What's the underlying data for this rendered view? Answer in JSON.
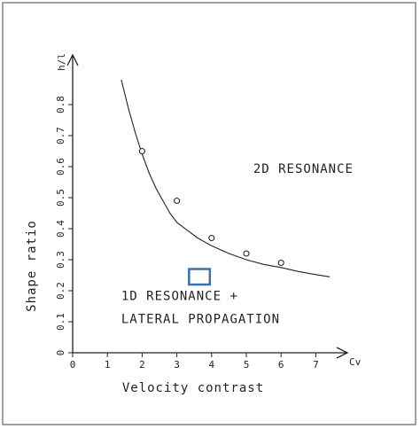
{
  "chart_data": {
    "type": "scatter",
    "xlabel": "Velocity contrast",
    "ylabel": "Shape ratio",
    "x_axis_unit": "Cv",
    "y_axis_unit": "h/l",
    "xlim": [
      0,
      8
    ],
    "ylim": [
      0,
      0.9
    ],
    "x_ticks": [
      0,
      1,
      2,
      3,
      4,
      5,
      6,
      7
    ],
    "y_ticks": [
      0,
      0.1,
      0.2,
      0.3,
      0.4,
      0.5,
      0.6,
      0.7,
      0.8
    ],
    "grid": false,
    "series": [
      {
        "style": "points",
        "marker": "open-circle",
        "x": [
          2,
          3,
          4,
          5,
          6
        ],
        "y": [
          0.65,
          0.49,
          0.37,
          0.32,
          0.29
        ]
      },
      {
        "style": "line",
        "x": [
          1.4,
          1.6,
          1.8,
          2.0,
          2.2,
          2.4,
          2.6,
          2.8,
          3.0,
          3.3,
          3.6,
          4.0,
          4.5,
          5.0,
          5.5,
          6.0,
          6.5,
          7.0,
          7.4
        ],
        "y": [
          0.88,
          0.79,
          0.71,
          0.64,
          0.58,
          0.53,
          0.49,
          0.45,
          0.42,
          0.395,
          0.37,
          0.345,
          0.32,
          0.3,
          0.285,
          0.275,
          0.262,
          0.252,
          0.245
        ]
      }
    ],
    "annotations": [
      {
        "lines": [
          "2D RESONANCE"
        ],
        "x": 5.2,
        "y": 0.58
      },
      {
        "lines": [
          "1D RESONANCE  +",
          "LATERAL PROPAGATION"
        ],
        "x": 1.4,
        "y": 0.17
      }
    ],
    "highlight_box": {
      "x_range": [
        3.35,
        3.95
      ],
      "y_range": [
        0.22,
        0.27
      ],
      "color": "#3d6fa8"
    }
  }
}
